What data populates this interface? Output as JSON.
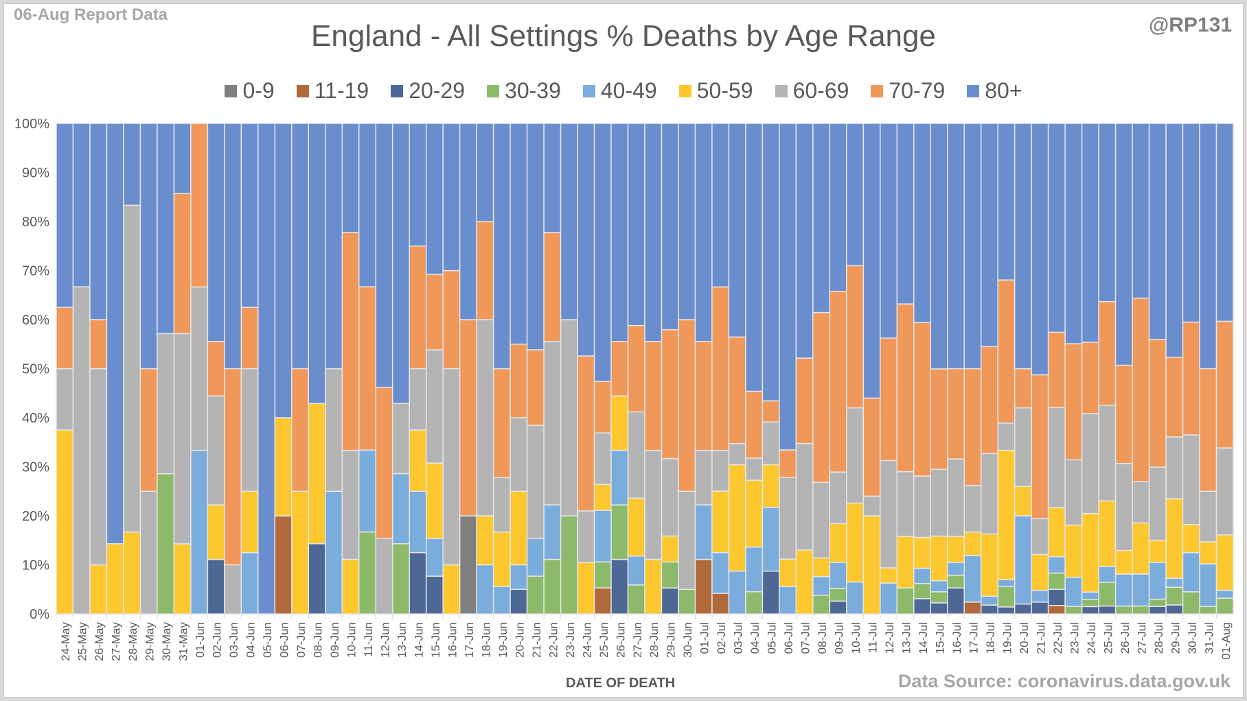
{
  "header": {
    "report_label": "06-Aug Report Data",
    "handle": "@RP131",
    "source": "Data Source: coronavirus.data.gov.uk"
  },
  "chart_data": {
    "type": "bar",
    "stacked": "percent",
    "title": "England - All Settings % Deaths by Age Range",
    "xlabel": "DATE OF DEATH",
    "ylabel": "",
    "ylim": [
      0,
      100
    ],
    "yticks": [
      "0%",
      "10%",
      "20%",
      "30%",
      "40%",
      "50%",
      "60%",
      "70%",
      "80%",
      "90%",
      "100%"
    ],
    "legend_position": "top",
    "grid": true,
    "categories": [
      "24-May",
      "25-May",
      "26-May",
      "27-May",
      "28-May",
      "29-May",
      "30-May",
      "31-May",
      "01-Jun",
      "02-Jun",
      "03-Jun",
      "04-Jun",
      "05-Jun",
      "06-Jun",
      "07-Jun",
      "08-Jun",
      "09-Jun",
      "10-Jun",
      "11-Jun",
      "12-Jun",
      "13-Jun",
      "14-Jun",
      "15-Jun",
      "16-Jun",
      "17-Jun",
      "18-Jun",
      "19-Jun",
      "20-Jun",
      "21-Jun",
      "22-Jun",
      "23-Jun",
      "24-Jun",
      "25-Jun",
      "26-Jun",
      "27-Jun",
      "28-Jun",
      "29-Jun",
      "30-Jun",
      "01-Jul",
      "02-Jul",
      "03-Jul",
      "04-Jul",
      "05-Jul",
      "06-Jul",
      "07-Jul",
      "08-Jul",
      "09-Jul",
      "10-Jul",
      "11-Jul",
      "12-Jul",
      "13-Jul",
      "14-Jul",
      "15-Jul",
      "16-Jul",
      "17-Jul",
      "18-Jul",
      "19-Jul",
      "20-Jul",
      "21-Jul",
      "22-Jul",
      "23-Jul",
      "24-Jul",
      "25-Jul",
      "26-Jul",
      "27-Jul",
      "28-Jul",
      "29-Jul",
      "30-Jul",
      "31-Jul",
      "01-Aug"
    ],
    "series": [
      {
        "name": "0-9",
        "color": "#7f7f7f",
        "values": [
          0,
          0,
          0,
          0,
          0,
          0,
          0,
          0,
          0,
          0,
          0,
          0,
          0,
          0,
          0,
          0,
          0,
          0,
          0,
          0,
          0,
          0,
          0,
          0,
          20,
          0,
          0,
          0,
          0,
          0,
          0,
          0,
          0,
          0,
          0,
          0,
          0,
          0,
          0,
          0,
          0,
          0,
          0,
          0,
          0,
          0,
          0,
          0,
          0,
          0,
          0,
          0,
          0,
          0,
          0,
          0,
          0,
          0,
          0,
          0,
          0,
          0,
          0,
          0,
          0,
          0,
          0,
          0,
          0,
          0
        ]
      },
      {
        "name": "11-19",
        "color": "#b0693a",
        "values": [
          0,
          0,
          0,
          0,
          0,
          0,
          0,
          0,
          0,
          0,
          0,
          0,
          0,
          20,
          0,
          0,
          0,
          0,
          0,
          0,
          0,
          0,
          0,
          0,
          0,
          0,
          0,
          0,
          0,
          0,
          0,
          0,
          5.3,
          0,
          0,
          0,
          0,
          0,
          11.1,
          4.2,
          0,
          0,
          0,
          0,
          0,
          0,
          0,
          0,
          0,
          0,
          0,
          0,
          0,
          0,
          2.4,
          0,
          0,
          0,
          0,
          1.7,
          0,
          0,
          0,
          0,
          0,
          0,
          0,
          0,
          0,
          0
        ]
      },
      {
        "name": "20-29",
        "color": "#4e6896",
        "values": [
          0,
          0,
          0,
          0,
          0,
          0,
          0,
          0,
          0,
          11.1,
          0,
          0,
          0,
          0,
          0,
          14.3,
          0,
          0,
          0,
          0,
          0,
          12.5,
          7.7,
          0,
          0,
          0,
          0,
          5,
          0,
          0,
          0,
          0,
          0,
          11.1,
          0,
          0,
          5.3,
          0,
          0,
          0,
          0,
          0,
          8.7,
          0,
          0,
          0,
          2.6,
          0,
          0,
          0,
          0,
          3.1,
          2.2,
          5.3,
          0,
          1.8,
          1.5,
          2,
          2.4,
          3.3,
          0,
          1.5,
          1.6,
          0,
          0,
          1.5,
          1.8,
          0,
          0,
          0
        ]
      },
      {
        "name": "30-39",
        "color": "#8cba6a",
        "values": [
          0,
          0,
          0,
          0,
          0,
          0,
          28.6,
          0,
          0,
          0,
          0,
          0,
          0,
          0,
          0,
          0,
          0,
          0,
          16.7,
          0,
          14.3,
          0,
          0,
          0,
          0,
          0,
          0,
          0,
          7.7,
          11.1,
          20,
          0,
          5.3,
          11.1,
          5.9,
          0,
          5.3,
          5,
          0,
          0,
          0,
          4.5,
          0,
          0,
          0,
          3.8,
          2.6,
          0,
          0,
          0,
          5.3,
          3.1,
          2.2,
          2.6,
          0,
          0,
          4.4,
          0,
          0,
          3.3,
          1.5,
          1.5,
          4.8,
          1.6,
          1.6,
          1.5,
          3.6,
          4.5,
          1.5,
          3.2
        ]
      },
      {
        "name": "40-49",
        "color": "#7aacdc",
        "values": [
          0,
          0,
          0,
          0,
          0,
          0,
          0,
          0,
          33.3,
          0,
          0,
          12.5,
          0,
          0,
          0,
          0,
          25,
          0,
          16.7,
          0,
          14.3,
          12.5,
          7.7,
          0,
          0,
          10,
          5.6,
          5,
          7.7,
          11.1,
          0,
          0,
          10.5,
          11.1,
          5.9,
          0,
          0,
          0,
          11.1,
          8.3,
          8.7,
          9.1,
          13,
          5.6,
          0,
          3.8,
          5.3,
          6.5,
          0,
          6.3,
          0,
          3.1,
          2.2,
          2.6,
          9.5,
          1.8,
          1.5,
          18,
          2.4,
          3.3,
          5.9,
          1.5,
          3.2,
          6.5,
          6.5,
          7.5,
          1.8,
          8,
          8.7,
          1.6
        ]
      },
      {
        "name": "50-59",
        "color": "#fdc82f",
        "values": [
          37.5,
          0,
          10,
          14.3,
          16.7,
          0,
          0,
          14.3,
          0,
          11.1,
          0,
          12.5,
          0,
          20,
          25,
          28.6,
          0,
          11.1,
          0,
          0,
          0,
          12.5,
          15.4,
          10,
          0,
          10,
          11.1,
          15,
          0,
          0,
          0,
          10.5,
          5.3,
          11.1,
          11.8,
          11.1,
          5.3,
          0,
          0,
          12.5,
          21.7,
          13.6,
          8.7,
          5.6,
          13,
          3.8,
          7.9,
          16.1,
          20,
          3.1,
          10.5,
          6.3,
          8.9,
          5.3,
          4.8,
          12.7,
          27.9,
          6,
          7.3,
          10,
          10.6,
          16.2,
          13.3,
          4.8,
          10.4,
          4.5,
          16.1,
          5.7,
          4.5,
          11.3
        ]
      },
      {
        "name": "60-69",
        "color": "#b4b4b4",
        "values": [
          12.5,
          66.7,
          40,
          0,
          66.7,
          20,
          28.6,
          42.9,
          33.3,
          22.2,
          10,
          25,
          0,
          0,
          0,
          0,
          25,
          22.2,
          0,
          15.4,
          14.3,
          12.5,
          23.1,
          40,
          0,
          40,
          11.1,
          15,
          23.1,
          33.3,
          40,
          10.5,
          10.5,
          0,
          17.6,
          22.2,
          15.8,
          20,
          11.1,
          8.3,
          4.3,
          4.5,
          8.7,
          16.7,
          21.7,
          15.4,
          10.5,
          19.4,
          4,
          21.9,
          13.2,
          12.5,
          13.3,
          15.8,
          9.5,
          16.4,
          5.9,
          16,
          7.3,
          20.3,
          13.2,
          20.6,
          19.4,
          17.7,
          8.4,
          14.9,
          12.5,
          18.3,
          10.3,
          17.7
        ]
      },
      {
        "name": "70-79",
        "color": "#f0975a",
        "values": [
          12.5,
          0,
          10,
          0,
          0,
          20,
          0,
          28.6,
          33.3,
          11.1,
          40,
          12.5,
          0,
          0,
          25,
          0,
          0,
          44.4,
          33.3,
          30.8,
          0,
          25,
          15.4,
          20,
          40,
          20,
          22.2,
          15,
          15.4,
          22.2,
          0,
          31.6,
          10.5,
          11.1,
          17.6,
          22.2,
          26.3,
          35,
          22.2,
          33.3,
          21.7,
          13.6,
          4.3,
          5.6,
          17.4,
          34.6,
          36.8,
          29,
          20,
          25,
          34.2,
          31.3,
          20,
          18.4,
          23.8,
          21.8,
          30.9,
          8,
          29.3,
          15.3,
          23.5,
          14.7,
          21,
          20,
          37.3,
          26,
          16.1,
          23,
          25,
          25.8
        ]
      },
      {
        "name": "80+",
        "color": "#6a8dcd",
        "values": [
          37.5,
          33.3,
          40,
          85.7,
          16.7,
          40,
          42.9,
          14.3,
          0,
          44.4,
          50,
          37.5,
          100,
          60,
          50,
          57.1,
          50,
          22.2,
          33.3,
          53.8,
          57.1,
          25,
          30.8,
          30,
          40,
          20,
          50,
          45,
          46.2,
          22.2,
          40,
          47.4,
          52.6,
          44.4,
          41.2,
          44.4,
          42.1,
          40,
          44.4,
          33.3,
          43.5,
          54.5,
          56.5,
          66.7,
          47.8,
          38.5,
          34.2,
          29,
          56,
          43.8,
          36.8,
          40.6,
          48.9,
          50,
          50,
          45.5,
          33.8,
          50,
          51.2,
          42.4,
          44.6,
          45.1,
          36.1,
          49.2,
          35.5,
          44,
          47.3,
          40.5,
          50,
          40.3
        ]
      }
    ]
  }
}
